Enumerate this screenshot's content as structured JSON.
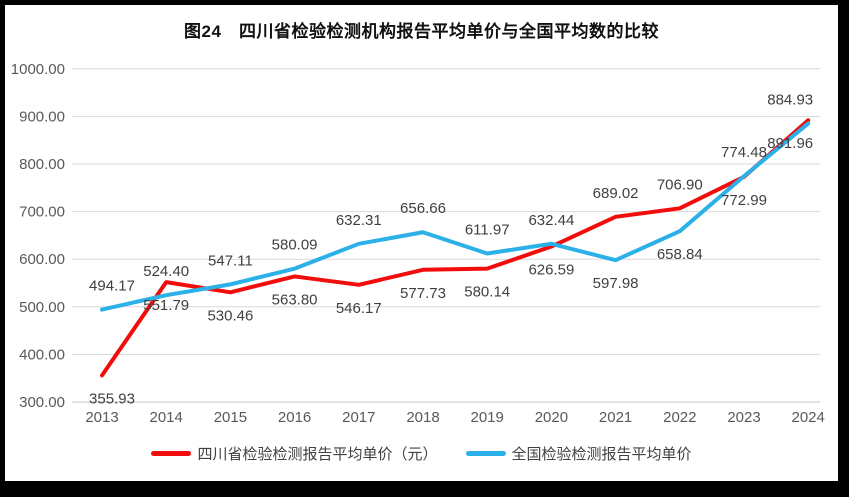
{
  "chart_data": {
    "type": "line",
    "title": "图24　四川省检验检测机构报告平均单价与全国平均数的比较",
    "categories": [
      "2013",
      "2014",
      "2015",
      "2016",
      "2017",
      "2018",
      "2019",
      "2020",
      "2021",
      "2022",
      "2023",
      "2024"
    ],
    "series": [
      {
        "name": "四川省检验检测报告平均单价（元）",
        "color": "#f20d0d",
        "values": [
          355.93,
          551.79,
          530.46,
          563.8,
          546.17,
          577.73,
          580.14,
          626.59,
          689.02,
          706.9,
          772.99,
          891.96
        ],
        "label_positions": [
          "below",
          "below",
          "below",
          "below",
          "below",
          "below",
          "below",
          "below",
          "above",
          "above",
          "below",
          "below"
        ]
      },
      {
        "name": "全国检验检测报告平均单价",
        "color": "#2bb0e8",
        "values": [
          494.17,
          524.4,
          547.11,
          580.09,
          632.31,
          656.66,
          611.97,
          632.44,
          597.98,
          658.84,
          774.48,
          884.93
        ],
        "label_positions": [
          "above",
          "above",
          "above",
          "above",
          "above",
          "above",
          "above",
          "above",
          "below",
          "below",
          "above",
          "above"
        ]
      }
    ],
    "xlabel": "",
    "ylabel": "",
    "ylim": [
      300,
      1000
    ],
    "ytick_step": 100,
    "ytick_labels": [
      "300.00",
      "400.00",
      "500.00",
      "600.00",
      "700.00",
      "800.00",
      "900.00",
      "1000.00"
    ],
    "grid": true,
    "legend_position": "bottom",
    "colors": {
      "grid_line": "#d9d9d9",
      "axis_text": "#595959",
      "data_label_text": "#404040",
      "frame_border": "#000000"
    }
  }
}
